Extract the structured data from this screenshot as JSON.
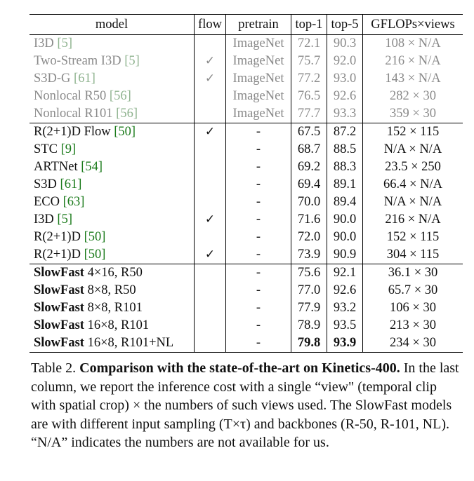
{
  "table": {
    "headers": [
      "model",
      "flow",
      "pretrain",
      "top-1",
      "top-5",
      "GFLOPs×views"
    ],
    "groups": [
      {
        "style": "grey",
        "rows": [
          {
            "model": "I3D",
            "cite": "[5]",
            "flow": "",
            "pretrain": "ImageNet",
            "top1": "72.1",
            "top5": "90.3",
            "gflops": "108 × N/A"
          },
          {
            "model": "Two-Stream I3D",
            "cite": "[5]",
            "flow": "✓",
            "pretrain": "ImageNet",
            "top1": "75.7",
            "top5": "92.0",
            "gflops": "216 × N/A"
          },
          {
            "model": "S3D-G",
            "cite": "[61]",
            "flow": "✓",
            "pretrain": "ImageNet",
            "top1": "77.2",
            "top5": "93.0",
            "gflops": "143 × N/A"
          },
          {
            "model": "Nonlocal R50",
            "cite": "[56]",
            "flow": "",
            "pretrain": "ImageNet",
            "top1": "76.5",
            "top5": "92.6",
            "gflops": "282 × 30"
          },
          {
            "model": "Nonlocal R101",
            "cite": "[56]",
            "flow": "",
            "pretrain": "ImageNet",
            "top1": "77.7",
            "top5": "93.3",
            "gflops": "359 × 30"
          }
        ]
      },
      {
        "style": "normal",
        "rows": [
          {
            "model": "R(2+1)D Flow",
            "cite": "[50]",
            "flow": "✓",
            "pretrain": "-",
            "top1": "67.5",
            "top5": "87.2",
            "gflops": "152 × 115"
          },
          {
            "model": "STC",
            "cite": "[9]",
            "flow": "",
            "pretrain": "-",
            "top1": "68.7",
            "top5": "88.5",
            "gflops": "N/A × N/A"
          },
          {
            "model": "ARTNet",
            "cite": "[54]",
            "flow": "",
            "pretrain": "-",
            "top1": "69.2",
            "top5": "88.3",
            "gflops": "23.5 × 250"
          },
          {
            "model": "S3D",
            "cite": "[61]",
            "flow": "",
            "pretrain": "-",
            "top1": "69.4",
            "top5": "89.1",
            "gflops": "66.4 × N/A"
          },
          {
            "model": "ECO",
            "cite": "[63]",
            "flow": "",
            "pretrain": "-",
            "top1": "70.0",
            "top5": "89.4",
            "gflops": "N/A × N/A"
          },
          {
            "model": "I3D",
            "cite": "[5]",
            "flow": "✓",
            "pretrain": "-",
            "top1": "71.6",
            "top5": "90.0",
            "gflops": "216 × N/A"
          },
          {
            "model": "R(2+1)D",
            "cite": "[50]",
            "flow": "",
            "pretrain": "-",
            "top1": "72.0",
            "top5": "90.0",
            "gflops": "152 × 115"
          },
          {
            "model": "R(2+1)D",
            "cite": "[50]",
            "flow": "✓",
            "pretrain": "-",
            "top1": "73.9",
            "top5": "90.9",
            "gflops": "304 × 115"
          }
        ]
      },
      {
        "style": "slowfast",
        "rows": [
          {
            "model_bold": "SlowFast",
            "model_rest": "4×16, R50",
            "flow": "",
            "pretrain": "-",
            "top1": "75.6",
            "top5": "92.1",
            "gflops": "36.1 × 30"
          },
          {
            "model_bold": "SlowFast",
            "model_rest": "8×8, R50",
            "flow": "",
            "pretrain": "-",
            "top1": "77.0",
            "top5": "92.6",
            "gflops": "65.7 × 30"
          },
          {
            "model_bold": "SlowFast",
            "model_rest": "8×8, R101",
            "flow": "",
            "pretrain": "-",
            "top1": "77.9",
            "top5": "93.2",
            "gflops": "106 × 30"
          },
          {
            "model_bold": "SlowFast",
            "model_rest": "16×8, R101",
            "flow": "",
            "pretrain": "-",
            "top1": "78.9",
            "top5": "93.5",
            "gflops": "213 × 30"
          },
          {
            "model_bold": "SlowFast",
            "model_rest": "16×8, R101+NL",
            "flow": "",
            "pretrain": "-",
            "top1": "79.8",
            "top5": "93.9",
            "gflops": "234 × 30",
            "best": true
          }
        ]
      }
    ]
  },
  "caption": {
    "label": "Table 2.",
    "title": "Comparison with the state-of-the-art on Kinetics-400",
    "title_end": ".",
    "body": "In the last column, we report the inference cost with a single “view\" (temporal clip with spatial crop) × the numbers of such views used. The SlowFast models are with different input sampling (T×τ) and backbones (R-50, R-101, NL). “N/A” indicates the numbers are not available for us."
  },
  "colors": {
    "grey_text": "#8a8a8a",
    "citation_green": "#1a7a1a"
  }
}
